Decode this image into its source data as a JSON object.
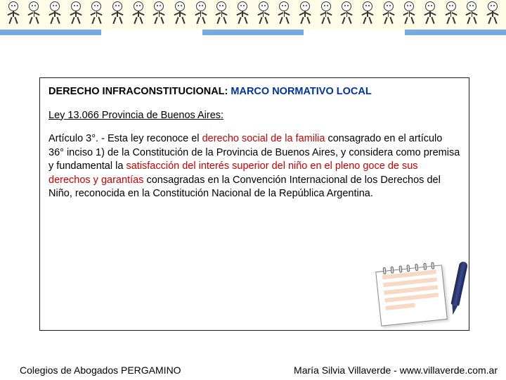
{
  "stripe_colors": [
    "#74ACDF",
    "#ffffff",
    "#74ACDF",
    "#ffffff",
    "#74ACDF"
  ],
  "content": {
    "title_black": "DERECHO INFRACONSTITUCIONAL: ",
    "title_blue": "MARCO NORMATIVO LOCAL",
    "law_line": "Ley 13.066 Provincia de Buenos Aires:",
    "article_prefix": "Artículo 3°. - Esta ley reconoce el ",
    "article_red1": "derecho social de la familia",
    "article_mid1": " consagrado en el artículo 36° inciso 1) de la Constitución de la Provincia de Buenos Aires, y considera como premisa y fundamental la ",
    "article_red2": "satisfacción del interés superior del niño en el pleno goce de sus derechos y garantías",
    "article_end": " consagradas en la Convención Internacional de los Derechos del Niño, reconocida en la Constitución Nacional de la República Argentina."
  },
  "footer": {
    "left": "Colegios de Abogados PERGAMINO",
    "right": "María Silvia Villaverde  -  www.villaverde.com.ar"
  },
  "figure_count": 24
}
